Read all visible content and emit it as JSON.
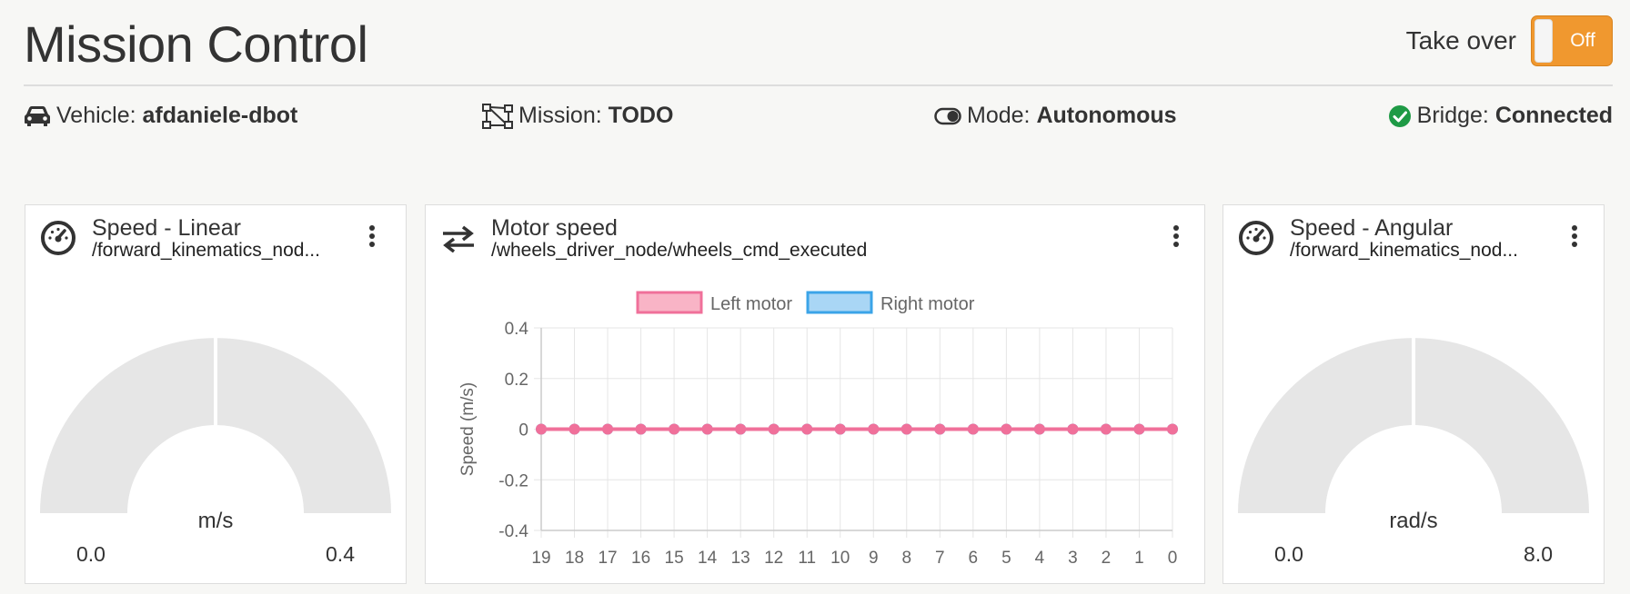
{
  "header": {
    "title": "Mission Control",
    "takeover_label": "Take over",
    "toggle_text": "Off"
  },
  "status": {
    "vehicle": {
      "label": "Vehicle:",
      "value": "afdaniele-dbot",
      "icon": "car-icon"
    },
    "mission": {
      "label": "Mission:",
      "value": "TODO",
      "icon": "mission-path-icon"
    },
    "mode": {
      "label": "Mode:",
      "value": "Autonomous",
      "icon": "toggle-icon"
    },
    "bridge": {
      "label": "Bridge:",
      "value": "Connected",
      "icon": "check-circle-icon",
      "color": "#1e9a45"
    }
  },
  "panels": {
    "linear": {
      "title": "Speed - Linear",
      "subtitle": "/forward_kinematics_nod...",
      "icon": "speedometer-icon",
      "gauge": {
        "unit": "m/s",
        "min": "0.0",
        "max": "0.4",
        "value_fraction": 0
      }
    },
    "motor": {
      "title": "Motor speed",
      "subtitle": "/wheels_driver_node/wheels_cmd_executed",
      "icon": "swap-arrows-icon"
    },
    "angular": {
      "title": "Speed - Angular",
      "subtitle": "/forward_kinematics_nod...",
      "icon": "speedometer-icon",
      "gauge": {
        "unit": "rad/s",
        "min": "0.0",
        "max": "8.0",
        "value_fraction": 0
      }
    }
  },
  "chart_data": {
    "type": "line",
    "ylabel": "Speed (m/s)",
    "ylim": [
      -0.4,
      0.4
    ],
    "yticks": [
      "0.4",
      "0.2",
      "0",
      "-0.2",
      "-0.4"
    ],
    "yticks_values": [
      0.4,
      0.2,
      0,
      -0.2,
      -0.4
    ],
    "categories": [
      "19",
      "18",
      "17",
      "16",
      "15",
      "14",
      "13",
      "12",
      "11",
      "10",
      "9",
      "8",
      "7",
      "6",
      "5",
      "4",
      "3",
      "2",
      "1",
      "0"
    ],
    "grid": true,
    "legend_placement": "top",
    "series": [
      {
        "name": "Left motor",
        "color": "#f0709a",
        "fill": "#f9b4c6",
        "values": [
          0,
          0,
          0,
          0,
          0,
          0,
          0,
          0,
          0,
          0,
          0,
          0,
          0,
          0,
          0,
          0,
          0,
          0,
          0,
          0
        ]
      },
      {
        "name": "Right motor",
        "color": "#3ba4e8",
        "fill": "#a9d6f5",
        "values": [
          0,
          0,
          0,
          0,
          0,
          0,
          0,
          0,
          0,
          0,
          0,
          0,
          0,
          0,
          0,
          0,
          0,
          0,
          0,
          0
        ]
      }
    ]
  }
}
